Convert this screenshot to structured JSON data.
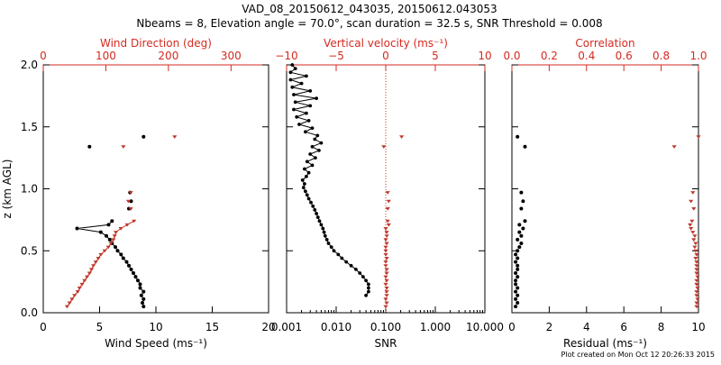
{
  "colors": {
    "black": "#000000",
    "red": "#c0392b",
    "red_axis": "#d42a20"
  },
  "title_line1": "VAD_08_20150612_043035, 20150612.043053",
  "title_line2": "Nbeams = 8, Elevation angle = 70.0°, scan duration = 32.5 s, SNR Threshold = 0.008",
  "footer": "Plot created on Mon Oct 12 20:26:33 2015",
  "chart_data": [
    {
      "type": "line",
      "panel": "wind",
      "ylabel": "z (km AGL)",
      "ylim": [
        0,
        2.0
      ],
      "yticks": [
        0.0,
        0.5,
        1.0,
        1.5,
        2.0
      ],
      "ytick_labels": [
        "0.0",
        "0.5",
        "1.0",
        "1.5",
        "2.0"
      ],
      "bottom_axis": {
        "label": "Wind Speed (ms⁻¹)",
        "range": [
          0,
          20
        ],
        "ticks": [
          0,
          5,
          10,
          15,
          20
        ],
        "tick_labels": [
          "0",
          "5",
          "10",
          "15",
          "20"
        ]
      },
      "top_axis": {
        "label": "Wind Direction (deg)",
        "range": [
          0,
          360
        ],
        "ticks": [
          0,
          100,
          200,
          300
        ],
        "tick_labels": [
          "0",
          "100",
          "200",
          "300"
        ]
      },
      "series": [
        {
          "name": "Wind Speed",
          "axis": "bottom",
          "color": "black",
          "z": [
            0.05,
            0.08,
            0.11,
            0.14,
            0.17,
            0.2,
            0.23,
            0.26,
            0.29,
            0.32,
            0.35,
            0.38,
            0.41,
            0.44,
            0.47,
            0.5,
            0.53,
            0.56,
            0.59,
            0.62,
            0.65,
            0.68,
            0.71,
            0.74
          ],
          "values": [
            8.9,
            8.8,
            8.9,
            8.7,
            8.9,
            8.6,
            8.6,
            8.4,
            8.2,
            8.0,
            7.8,
            7.6,
            7.4,
            7.1,
            6.9,
            6.6,
            6.4,
            6.1,
            5.9,
            5.6,
            5.1,
            3.0,
            5.8,
            6.1
          ]
        },
        {
          "name": "Wind Speed upper",
          "axis": "bottom",
          "color": "black",
          "lines": false,
          "z": [
            0.84,
            0.9,
            0.97,
            1.34,
            1.42
          ],
          "values": [
            7.6,
            7.8,
            7.7,
            4.1,
            8.9
          ]
        },
        {
          "name": "Wind Direction",
          "axis": "top",
          "color": "red",
          "z": [
            0.05,
            0.08,
            0.11,
            0.14,
            0.17,
            0.2,
            0.23,
            0.26,
            0.29,
            0.32,
            0.35,
            0.38,
            0.41,
            0.44,
            0.47,
            0.5,
            0.53,
            0.56,
            0.59,
            0.62,
            0.65,
            0.68,
            0.71,
            0.74
          ],
          "values": [
            38,
            42,
            46,
            50,
            55,
            58,
            62,
            66,
            70,
            74,
            77,
            80,
            84,
            88,
            92,
            98,
            104,
            108,
            112,
            114,
            116,
            124,
            134,
            145
          ]
        },
        {
          "name": "Wind Direction upper",
          "axis": "top",
          "color": "red",
          "lines": false,
          "z": [
            0.84,
            0.9,
            0.97,
            1.34,
            1.42
          ],
          "values": [
            140,
            136,
            140,
            128,
            210
          ]
        }
      ]
    },
    {
      "type": "line",
      "panel": "snr",
      "ylim": [
        0,
        2.0
      ],
      "bottom_axis": {
        "label": "SNR",
        "scale": "log",
        "range": [
          0.001,
          10
        ],
        "ticks": [
          0.001,
          0.01,
          0.1,
          1,
          10
        ],
        "tick_labels": [
          "0.001",
          "0.010",
          "0.100",
          "1.000",
          "10.000"
        ]
      },
      "top_axis": {
        "label": "Vertical velocity (ms⁻¹)",
        "range": [
          -10,
          10
        ],
        "ticks": [
          -10,
          -5,
          0,
          5,
          10
        ],
        "tick_labels": [
          "−10",
          "−5",
          "0",
          "5",
          "10"
        ]
      },
      "series": [
        {
          "name": "SNR",
          "axis": "bottom",
          "color": "black",
          "z": [
            0.14,
            0.17,
            0.2,
            0.23,
            0.26,
            0.29,
            0.32,
            0.35,
            0.38,
            0.41,
            0.44,
            0.47,
            0.5,
            0.53,
            0.56,
            0.59,
            0.62,
            0.65,
            0.68,
            0.71,
            0.74,
            0.77,
            0.8,
            0.83,
            0.86,
            0.89,
            0.92,
            0.95,
            0.98,
            1.01,
            1.04,
            1.07,
            1.1,
            1.13,
            1.16,
            1.19,
            1.22,
            1.25,
            1.28,
            1.31,
            1.34,
            1.37,
            1.4,
            1.43,
            1.46,
            1.49,
            1.52,
            1.55,
            1.58,
            1.61,
            1.64,
            1.67,
            1.7,
            1.73,
            1.76,
            1.79,
            1.82,
            1.85,
            1.88,
            1.91,
            1.94,
            1.97,
            2.0
          ],
          "values": [
            0.04,
            0.045,
            0.045,
            0.045,
            0.04,
            0.035,
            0.03,
            0.025,
            0.02,
            0.016,
            0.013,
            0.011,
            0.009,
            0.008,
            0.007,
            0.0065,
            0.006,
            0.0057,
            0.0054,
            0.005,
            0.0046,
            0.0043,
            0.004,
            0.0037,
            0.0034,
            0.0031,
            0.0028,
            0.0026,
            0.0024,
            0.0022,
            0.0023,
            0.0021,
            0.0025,
            0.0028,
            0.0023,
            0.0033,
            0.0026,
            0.0038,
            0.003,
            0.0045,
            0.0033,
            0.005,
            0.0037,
            0.0042,
            0.0024,
            0.0033,
            0.0018,
            0.0028,
            0.0016,
            0.0025,
            0.0014,
            0.003,
            0.0015,
            0.004,
            0.0014,
            0.003,
            0.0013,
            0.002,
            0.0012,
            0.0025,
            0.0012,
            0.0015,
            0.0013
          ]
        },
        {
          "name": "Vertical velocity",
          "axis": "top",
          "color": "red",
          "lines": false,
          "z": [
            0.05,
            0.08,
            0.11,
            0.14,
            0.17,
            0.2,
            0.23,
            0.26,
            0.29,
            0.32,
            0.35,
            0.38,
            0.41,
            0.44,
            0.47,
            0.5,
            0.53,
            0.56,
            0.59,
            0.62,
            0.65,
            0.68,
            0.71,
            0.74,
            0.84,
            0.9,
            0.97,
            1.34,
            1.42
          ],
          "values": [
            0.0,
            0.1,
            0.0,
            0.1,
            0.1,
            0.1,
            0.0,
            0.1,
            0.0,
            0.1,
            0.1,
            0.0,
            0.0,
            0.1,
            0.0,
            0.0,
            0.0,
            0.1,
            0.0,
            0.1,
            0.1,
            0.0,
            0.3,
            0.2,
            0.2,
            0.3,
            0.2,
            -0.2,
            1.6
          ]
        },
        {
          "name": "Vertical velocity zero line",
          "axis": "top",
          "color": "red",
          "style": "dotted",
          "value": 0
        }
      ]
    },
    {
      "type": "scatter",
      "panel": "residual",
      "ylim": [
        0,
        2.0
      ],
      "bottom_axis": {
        "label": "Residual (ms⁻¹)",
        "range": [
          0,
          10
        ],
        "ticks": [
          0,
          2,
          4,
          6,
          8,
          10
        ],
        "tick_labels": [
          "0",
          "2",
          "4",
          "6",
          "8",
          "10"
        ]
      },
      "top_axis": {
        "label": "Correlation",
        "range": [
          0,
          1
        ],
        "ticks": [
          0,
          0.2,
          0.4,
          0.6,
          0.8,
          1.0
        ],
        "tick_labels": [
          "0.0",
          "0.2",
          "0.4",
          "0.6",
          "0.8",
          "1.0"
        ]
      },
      "series": [
        {
          "name": "Residual",
          "axis": "bottom",
          "color": "black",
          "z": [
            0.05,
            0.08,
            0.11,
            0.14,
            0.17,
            0.2,
            0.23,
            0.26,
            0.29,
            0.32,
            0.35,
            0.38,
            0.41,
            0.44,
            0.47,
            0.5,
            0.53,
            0.56,
            0.59,
            0.62,
            0.65,
            0.68,
            0.71,
            0.74,
            0.84,
            0.9,
            0.97,
            1.34,
            1.42
          ],
          "values": [
            0.2,
            0.3,
            0.2,
            0.3,
            0.2,
            0.3,
            0.2,
            0.2,
            0.3,
            0.2,
            0.3,
            0.3,
            0.2,
            0.3,
            0.2,
            0.3,
            0.4,
            0.5,
            0.3,
            0.5,
            0.4,
            0.6,
            0.4,
            0.7,
            0.5,
            0.6,
            0.5,
            0.7,
            0.3
          ]
        },
        {
          "name": "Correlation",
          "axis": "top",
          "color": "red",
          "z": [
            0.05,
            0.08,
            0.11,
            0.14,
            0.17,
            0.2,
            0.23,
            0.26,
            0.29,
            0.32,
            0.35,
            0.38,
            0.41,
            0.44,
            0.47,
            0.5,
            0.53,
            0.56,
            0.59,
            0.62,
            0.65,
            0.68,
            0.71,
            0.74,
            0.84,
            0.9,
            0.97,
            1.34,
            1.42
          ],
          "values": [
            0.99,
            0.99,
            0.995,
            0.99,
            0.99,
            0.995,
            0.99,
            0.99,
            0.995,
            0.99,
            0.99,
            0.99,
            0.99,
            0.985,
            0.99,
            0.985,
            0.98,
            0.985,
            0.975,
            0.98,
            0.97,
            0.96,
            0.955,
            0.965,
            0.975,
            0.96,
            0.97,
            0.87,
            1.0
          ]
        }
      ]
    }
  ]
}
